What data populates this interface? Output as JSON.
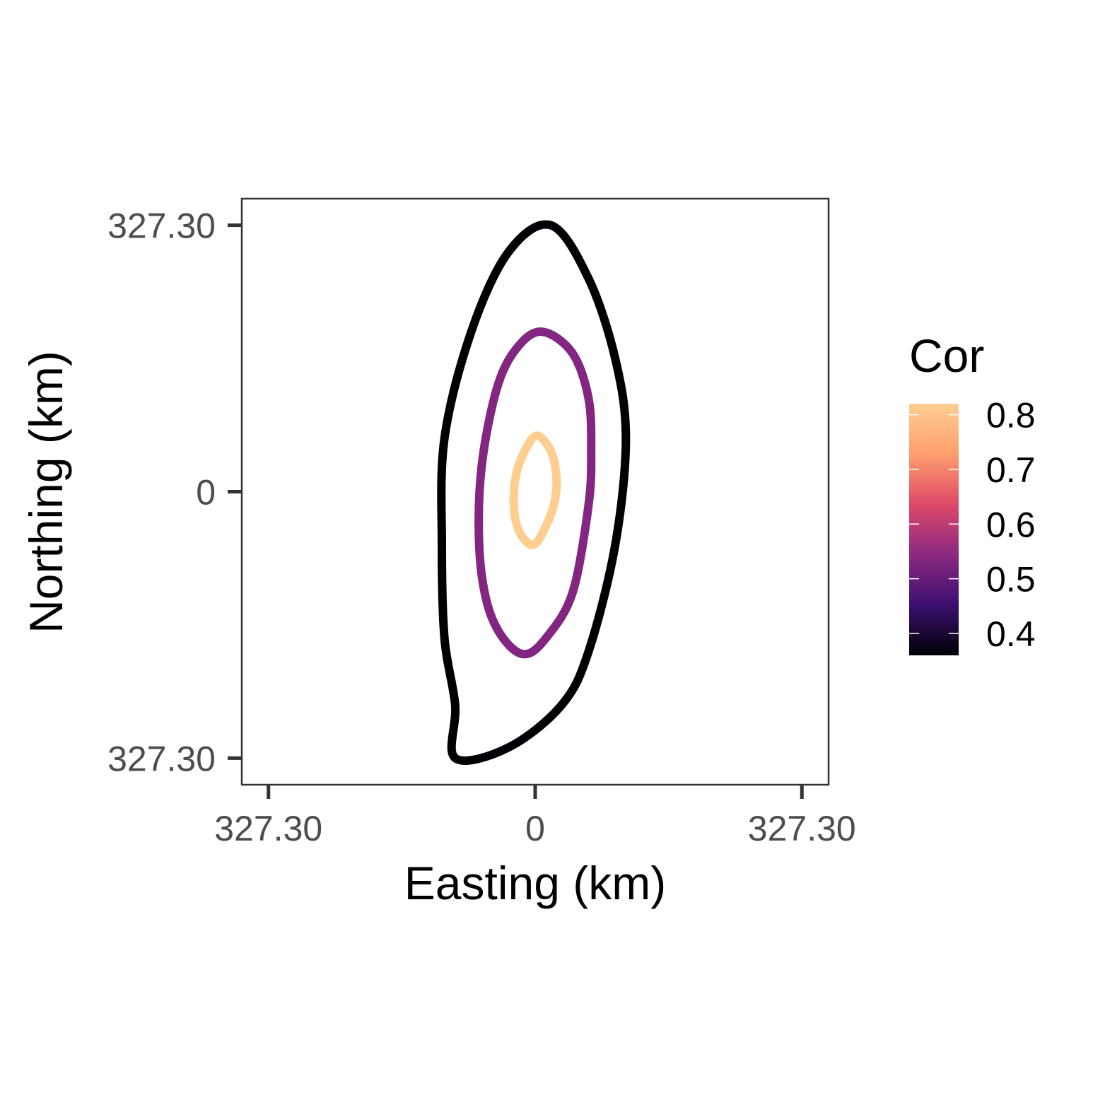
{
  "chart_data": {
    "type": "contour",
    "title": "",
    "xlabel": "Easting (km)",
    "ylabel": "Northing (km)",
    "x_ticks": [
      {
        "value": -1,
        "label": "327.30"
      },
      {
        "value": 0,
        "label": "0"
      },
      {
        "value": 1,
        "label": "327.30"
      }
    ],
    "y_ticks": [
      {
        "value": 1,
        "label": "327.30"
      },
      {
        "value": 0,
        "label": "0"
      },
      {
        "value": -1,
        "label": "327.30"
      }
    ],
    "xlim": [
      -1.1,
      1.1
    ],
    "ylim": [
      -1.1,
      1.1
    ],
    "grid": false,
    "series": [
      {
        "name": "0.4",
        "cor": 0.4,
        "color": "#000004",
        "points": [
          [
            -0.3,
            -1.0
          ],
          [
            -0.1,
            -0.96
          ],
          [
            0.1,
            -0.8
          ],
          [
            0.2,
            -0.6
          ],
          [
            0.3,
            -0.2
          ],
          [
            0.34,
            0.2
          ],
          [
            0.3,
            0.5
          ],
          [
            0.2,
            0.8
          ],
          [
            0.06,
            1.0
          ],
          [
            -0.1,
            0.9
          ],
          [
            -0.24,
            0.6
          ],
          [
            -0.34,
            0.2
          ],
          [
            -0.35,
            -0.2
          ],
          [
            -0.34,
            -0.55
          ],
          [
            -0.3,
            -0.8
          ]
        ]
      },
      {
        "name": "0.5",
        "cor": 0.5,
        "color": "#822681",
        "points": [
          [
            -0.04,
            -0.61
          ],
          [
            0.04,
            -0.55
          ],
          [
            0.14,
            -0.38
          ],
          [
            0.2,
            -0.05
          ],
          [
            0.21,
            0.15
          ],
          [
            0.2,
            0.35
          ],
          [
            0.14,
            0.52
          ],
          [
            0.03,
            0.6
          ],
          [
            -0.06,
            0.55
          ],
          [
            -0.14,
            0.4
          ],
          [
            -0.2,
            0.1
          ],
          [
            -0.21,
            -0.2
          ],
          [
            -0.18,
            -0.42
          ],
          [
            -0.12,
            -0.55
          ]
        ]
      },
      {
        "name": "0.8",
        "cor": 0.8,
        "color": "#FECE91",
        "points": [
          [
            -0.01,
            -0.2
          ],
          [
            0.03,
            -0.15
          ],
          [
            0.07,
            -0.05
          ],
          [
            0.08,
            0.05
          ],
          [
            0.06,
            0.15
          ],
          [
            0.01,
            0.21
          ],
          [
            -0.03,
            0.17
          ],
          [
            -0.07,
            0.07
          ],
          [
            -0.08,
            -0.05
          ],
          [
            -0.06,
            -0.15
          ]
        ]
      }
    ],
    "legend": {
      "title": "Cor",
      "position": "right",
      "min": 0.36,
      "max": 0.82,
      "ticks": [
        0.8,
        0.7,
        0.6,
        0.5,
        0.4
      ],
      "tick_labels": [
        "0.8",
        "0.7",
        "0.6",
        "0.5",
        "0.4"
      ],
      "colormap": [
        "#000004",
        "#3B0F70",
        "#8C2981",
        "#DE4968",
        "#FE9F6D",
        "#FECE91"
      ]
    }
  }
}
